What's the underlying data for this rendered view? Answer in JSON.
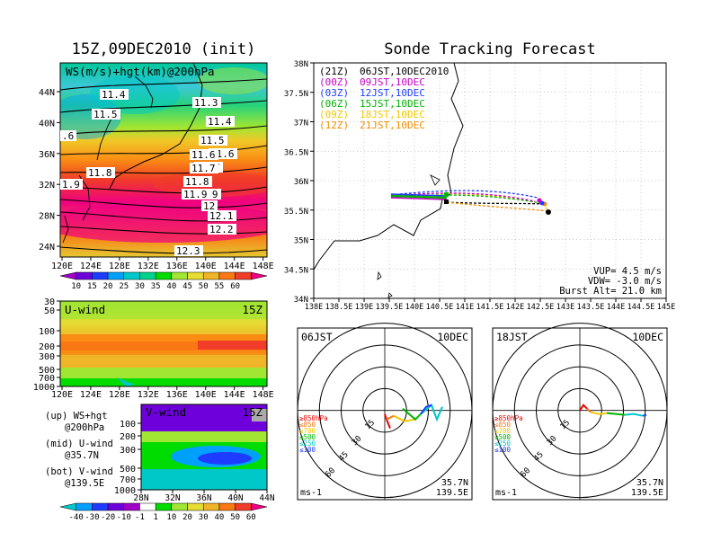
{
  "left_title": "15Z,09DEC2010 (init)",
  "right_title": "Sonde Tracking Forecast",
  "map_panel": {
    "label": "WS(m/s)+hgt(km)@200hPa",
    "x_ticks": [
      "120E",
      "124E",
      "128E",
      "132E",
      "136E",
      "140E",
      "144E",
      "148E"
    ],
    "y_ticks": [
      "24N",
      "28N",
      "32N",
      "36N",
      "40N",
      "44N"
    ],
    "contours": [
      {
        "label": "11.4"
      },
      {
        "label": "11.5"
      },
      {
        "label": "11.6"
      },
      {
        "label": "11.7"
      },
      {
        "label": "11.8"
      },
      {
        "label": "11.9"
      },
      {
        "label": "12"
      },
      {
        "label": "12.1"
      },
      {
        "label": "12.2"
      },
      {
        "label": "12.3"
      }
    ],
    "edge_labels": [
      "11.3",
      "11.4",
      "11.5",
      "11.6",
      "11.7",
      "11.8",
      "11.9",
      ".6",
      "1.9"
    ],
    "colorbar": {
      "labels": [
        "10",
        "15",
        "20",
        "25",
        "30",
        "35",
        "40",
        "45",
        "50",
        "55",
        "60"
      ],
      "colors": [
        "#a000c8",
        "#6e00dc",
        "#1e3cff",
        "#00a0ff",
        "#00c8c8",
        "#00d28c",
        "#00dc00",
        "#a0e632",
        "#e6dc32",
        "#f0b428",
        "#fa7814",
        "#f03c28",
        "#f00082"
      ]
    }
  },
  "uwind_panel": {
    "label": "U-wind",
    "time": "15Z",
    "y_ticks": [
      "30",
      "50",
      "100",
      "200",
      "300",
      "500",
      "700",
      "1000"
    ],
    "x_ticks": [
      "120E",
      "124E",
      "128E",
      "132E",
      "136E",
      "140E",
      "144E",
      "148E"
    ]
  },
  "vwind_panel": {
    "label": "V-wind",
    "time": "15Z",
    "y_ticks": [
      "100",
      "200",
      "300",
      "500",
      "700",
      "1000"
    ],
    "x_ticks": [
      "28N",
      "32N",
      "36N",
      "40N",
      "44N"
    ]
  },
  "notes": [
    {
      "a": "(up) WS+hgt",
      "b": "@200hPa"
    },
    {
      "a": "(mid) U-wind",
      "b": "@35.7N"
    },
    {
      "a": "(bot) V-wind",
      "b": "@139.5E"
    }
  ],
  "wind_colorbar": {
    "labels": [
      "-40",
      "-30",
      "-20",
      "-10",
      "-1",
      "1",
      "10",
      "20",
      "30",
      "40",
      "50",
      "60"
    ],
    "colors": [
      "#00c8c8",
      "#00a0ff",
      "#1e3cff",
      "#6e00dc",
      "#a000c8",
      "#ffffff",
      "#00dc00",
      "#a0e632",
      "#e6dc32",
      "#f0b428",
      "#fa7814",
      "#f03c28",
      "#f00082"
    ]
  },
  "track_panel": {
    "x_ticks": [
      "138E",
      "138.5E",
      "139E",
      "139.5E",
      "140E",
      "140.5E",
      "141E",
      "141.5E",
      "142E",
      "142.5E",
      "143E",
      "143.5E",
      "144E",
      "144.5E",
      "145E"
    ],
    "y_ticks": [
      "34N",
      "34.5N",
      "35N",
      "35.5N",
      "36N",
      "36.5N",
      "37N",
      "37.5N",
      "38N"
    ],
    "legend": [
      {
        "z": "(21Z)",
        "jst": "06JST,10DEC2010",
        "color": "#000000"
      },
      {
        "z": "(00Z)",
        "jst": "09JST,10DEC",
        "color": "#c800c8"
      },
      {
        "z": "(03Z)",
        "jst": "12JST,10DEC",
        "color": "#1e3cff"
      },
      {
        "z": "(06Z)",
        "jst": "15JST,10DEC",
        "color": "#00b400"
      },
      {
        "z": "(09Z)",
        "jst": "18JST,10DEC",
        "color": "#f0c800"
      },
      {
        "z": "(12Z)",
        "jst": "21JST,10DEC",
        "color": "#f08c00"
      }
    ],
    "params": [
      "VUP= 4.5 m/s",
      "VDW= -3.0 m/s",
      "Burst Alt= 21.0 km"
    ]
  },
  "polar_panels": [
    {
      "time": "06JST",
      "date": "10DEC",
      "lat": "35.7N",
      "lon": "139.5E",
      "unit": "ms-1"
    },
    {
      "time": "18JST",
      "date": "10DEC",
      "lat": "35.7N",
      "lon": "139.5E",
      "unit": "ms-1"
    }
  ],
  "polar_ring_labels": [
    "15",
    "30",
    "45",
    "60"
  ],
  "pressure_legend": [
    {
      "label": "≥850hPa",
      "color": "#f00000"
    },
    {
      "label": "≤850",
      "color": "#fa7814"
    },
    {
      "label": "≤700",
      "color": "#f0c800"
    },
    {
      "label": "≤500",
      "color": "#00b400"
    },
    {
      "label": "≤250",
      "color": "#00c8c8"
    },
    {
      "label": "≤100",
      "color": "#1e3cff"
    }
  ]
}
